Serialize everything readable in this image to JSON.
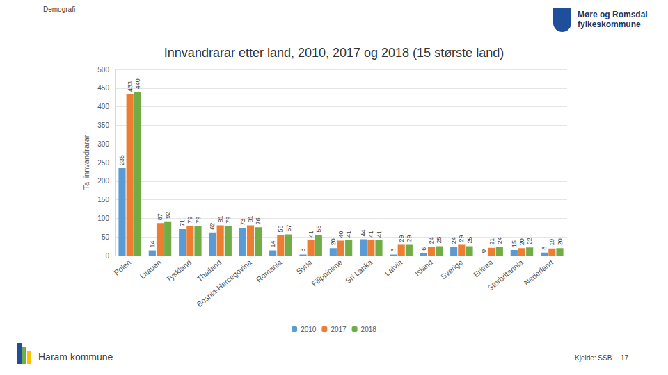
{
  "chart_data": {
    "type": "bar",
    "title": "Innvandrarar etter land, 2010, 2017 og 2018 (15 største land)",
    "y_label": "Tal innvandrarar",
    "annotations": [
      "Demografi",
      "Haram kommune",
      "Kjelde: SSB",
      "17",
      "Møre og Romsdal",
      "fylkeskommune"
    ],
    "categories": [
      "Polen",
      "Litauen",
      "Tyskland",
      "Thailand",
      "Bosnia-Hercegovina",
      "Romania",
      "Syria",
      "Filippinene",
      "Sri Lanka",
      "Latvia",
      "Island",
      "Sverige",
      "Eritrea",
      "Storbritannia",
      "Nederland"
    ],
    "series": [
      {
        "name": "2010",
        "color": "#5b9bd5",
        "values": [
          235,
          14,
          71,
          62,
          73,
          14,
          3,
          20,
          44,
          3,
          6,
          24,
          0,
          15,
          8
        ]
      },
      {
        "name": "2017",
        "color": "#ed7d31",
        "values": [
          433,
          87,
          79,
          81,
          81,
          55,
          41,
          40,
          41,
          29,
          24,
          29,
          21,
          20,
          19
        ]
      },
      {
        "name": "2018",
        "color": "#70ad47",
        "values": [
          440,
          92,
          79,
          79,
          76,
          57,
          55,
          41,
          41,
          29,
          25,
          25,
          24,
          22,
          20
        ]
      }
    ],
    "ylim": [
      0,
      500
    ],
    "yticks": [
      0,
      50,
      100,
      150,
      200,
      250,
      300,
      350,
      400,
      450,
      500
    ],
    "grid": true,
    "legend": "bottom",
    "data_labels": true
  }
}
